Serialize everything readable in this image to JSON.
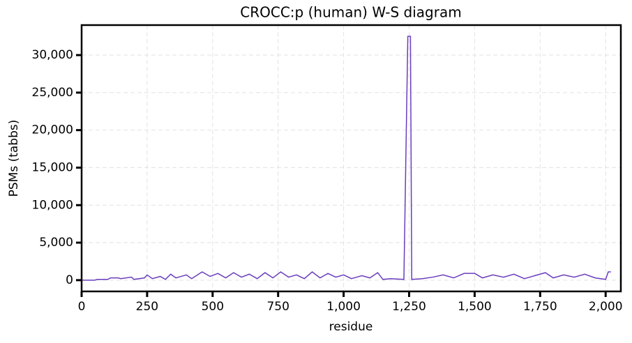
{
  "chart_data": {
    "type": "line",
    "title": "CROCC:p (human) W-S diagram",
    "x_label": "residue",
    "y_label": "PSMs (tabbs)",
    "x": [
      0,
      50,
      60,
      100,
      110,
      140,
      150,
      190,
      200,
      240,
      250,
      270,
      300,
      320,
      340,
      360,
      400,
      420,
      460,
      490,
      520,
      550,
      580,
      610,
      640,
      670,
      700,
      730,
      760,
      790,
      820,
      850,
      880,
      910,
      940,
      970,
      1000,
      1030,
      1070,
      1100,
      1130,
      1150,
      1180,
      1230,
      1245,
      1255,
      1260,
      1300,
      1340,
      1380,
      1420,
      1460,
      1500,
      1530,
      1570,
      1610,
      1650,
      1690,
      1730,
      1770,
      1800,
      1840,
      1880,
      1920,
      1960,
      2000,
      2010,
      2020
    ],
    "series": [
      {
        "name": "PSMs",
        "color": "#6a3dbd",
        "values": [
          0,
          0,
          100,
          100,
          300,
          300,
          200,
          400,
          100,
          300,
          700,
          200,
          500,
          100,
          800,
          300,
          700,
          200,
          1100,
          500,
          900,
          300,
          1000,
          400,
          800,
          200,
          1000,
          300,
          1100,
          400,
          700,
          200,
          1100,
          300,
          900,
          400,
          700,
          200,
          600,
          300,
          1000,
          100,
          200,
          100,
          32500,
          32500,
          100,
          200,
          400,
          700,
          300,
          900,
          900,
          300,
          700,
          400,
          800,
          200,
          600,
          1000,
          300,
          700,
          400,
          800,
          300,
          100,
          1100,
          1100
        ]
      }
    ],
    "xlim": [
      0,
      2058
    ],
    "ylim": [
      -1500,
      34000
    ],
    "xticks": [
      0,
      250,
      500,
      750,
      {
        "value": 1000,
        "label": "1,000"
      },
      {
        "value": 1250,
        "label": "1,250"
      },
      {
        "value": 1500,
        "label": "1,500"
      },
      {
        "value": 1750,
        "label": "1,750"
      },
      {
        "value": 2000,
        "label": "2,000"
      }
    ],
    "yticks": [
      0,
      {
        "value": 5000,
        "label": "5,000"
      },
      {
        "value": 10000,
        "label": "10,000"
      },
      {
        "value": 15000,
        "label": "15,000"
      },
      {
        "value": 20000,
        "label": "20,000"
      },
      {
        "value": 25000,
        "label": "25,000"
      },
      {
        "value": 30000,
        "label": "30,000"
      }
    ],
    "grid": true
  }
}
